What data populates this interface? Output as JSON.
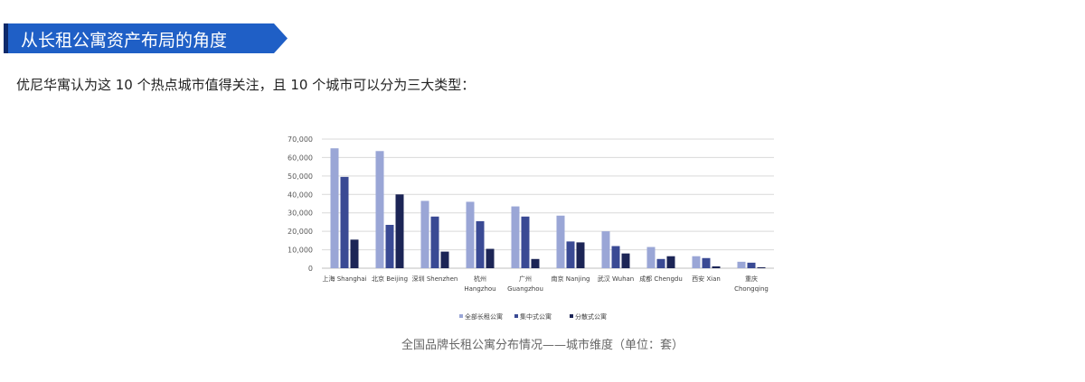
{
  "header": {
    "title": "从长租公寓资产布局的角度"
  },
  "intro": "优尼华寓认为这 10 个热点城市值得关注，且 10 个城市可以分为三大类型：",
  "caption": "全国品牌长租公寓分布情况——城市维度（单位：套）",
  "chart_data": {
    "type": "bar",
    "title": "",
    "xlabel": "",
    "ylabel": "",
    "ylim": [
      0,
      70000
    ],
    "yticks": [
      "0",
      "10,000",
      "20,000",
      "30,000",
      "40,000",
      "50,000",
      "60,000",
      "70,000"
    ],
    "grid": true,
    "legend_position": "bottom",
    "categories": [
      [
        "上海 Shanghai"
      ],
      [
        "北京 Beijing"
      ],
      [
        "深圳 Shenzhen"
      ],
      [
        "杭州",
        "Hangzhou"
      ],
      [
        "广州",
        "Guangzhou"
      ],
      [
        "南京 Nanjing"
      ],
      [
        "武汉 Wuhan"
      ],
      [
        "成都 Chengdu"
      ],
      [
        "西安 Xian"
      ],
      [
        "重庆",
        "Chongqing"
      ]
    ],
    "series": [
      {
        "name": "全部长租公寓",
        "color": "#9aa6d6",
        "values": [
          65000,
          63500,
          36500,
          36000,
          33500,
          28500,
          20000,
          11500,
          6500,
          3500
        ]
      },
      {
        "name": "集中式公寓",
        "color": "#3a4a94",
        "values": [
          49500,
          23500,
          28000,
          25500,
          28000,
          14500,
          12000,
          5000,
          5500,
          3000
        ]
      },
      {
        "name": "分散式公寓",
        "color": "#1c2556",
        "values": [
          15500,
          40000,
          9000,
          10500,
          5000,
          14000,
          8000,
          6500,
          1000,
          500
        ]
      }
    ]
  }
}
